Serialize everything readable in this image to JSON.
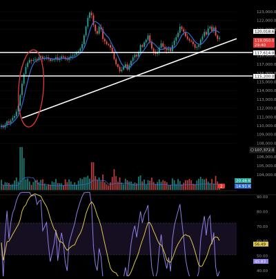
{
  "colors": {
    "background": "#000000",
    "up": "#26a69a",
    "down": "#ef5350",
    "trendline": "#ffffff",
    "annotation": "#e53935",
    "ma": "#2f6fd6",
    "rsi": "#8f7fe6",
    "rsi_ma": "#e0c84a",
    "rsi_band": "#160f22"
  },
  "price_axis": {
    "ticks": [
      "123,000.0",
      "122,000.0",
      "121,000.0",
      "118,000.0",
      "117,000.0",
      "116,000.0",
      "115,000.0",
      "114,000.0",
      "113,000.0",
      "112,000.0",
      "111,000.0",
      "110,000.0",
      "109,000.0",
      "108,000.0",
      "106,000.0",
      "105,000.0",
      "104,000.0"
    ]
  },
  "price_tags": {
    "current_blue": "120,018.6",
    "current_red": "119,050.0",
    "red_sub": "29:40",
    "level_upper": "117,614.0",
    "level_lower": "115,200.0",
    "measure": "107,372.0",
    "vol_green": "20.46 K",
    "vol_blue": "14.91 K",
    "vol_badge": "2"
  },
  "volume_axis": {
    "ticks": []
  },
  "rsi_axis": {
    "ticks": [
      "90.00",
      "80.00",
      "70.00",
      "60.00",
      "50.00",
      "40.00"
    ]
  },
  "rsi_tags": {
    "rsi_ma": "56.49",
    "rsi": "45.83"
  },
  "chart_data": {
    "type": "candlestick",
    "title": "",
    "price_range": [
      108300,
      123300
    ],
    "trendline": {
      "from_price": 110700,
      "to_price": 119950
    },
    "horizontal_levels": [
      117614.0,
      115200.0
    ],
    "closes": [
      110000,
      109800,
      110100,
      110500,
      110300,
      110600,
      110900,
      111100,
      111600,
      112300,
      113500,
      114800,
      115900,
      116700,
      117200,
      117500,
      117400,
      117500,
      117600,
      117500,
      117800,
      117900,
      117600,
      117700,
      117800,
      117600,
      117400,
      117500,
      117600,
      117800,
      117500,
      117700,
      117900,
      117800,
      117600,
      117500,
      117800,
      117900,
      118000,
      118100,
      118300,
      118500,
      118800,
      119300,
      120300,
      121300,
      122300,
      122900,
      122600,
      121500,
      120800,
      120500,
      121300,
      121000,
      119900,
      119600,
      119300,
      119200,
      118900,
      118400,
      117600,
      117000,
      116700,
      116200,
      116400,
      116700,
      117000,
      116400,
      116900,
      117400,
      117800,
      118100,
      117900,
      118400,
      119200,
      119000,
      119500,
      119800,
      120300,
      119600,
      118800,
      118400,
      118200,
      118400,
      118900,
      119400,
      119000,
      118800,
      118600,
      118800,
      118500,
      119200,
      119700,
      120100,
      120600,
      121300,
      121000,
      120700,
      120200,
      119900,
      119700,
      119600,
      119300,
      118900,
      119000,
      119200,
      119800,
      120200,
      120700,
      120400,
      121100,
      121300,
      120800,
      121200,
      120300,
      119900,
      120018.6
    ],
    "rsi_range": [
      35,
      93
    ],
    "rsi_levels": [
      70,
      50
    ]
  }
}
